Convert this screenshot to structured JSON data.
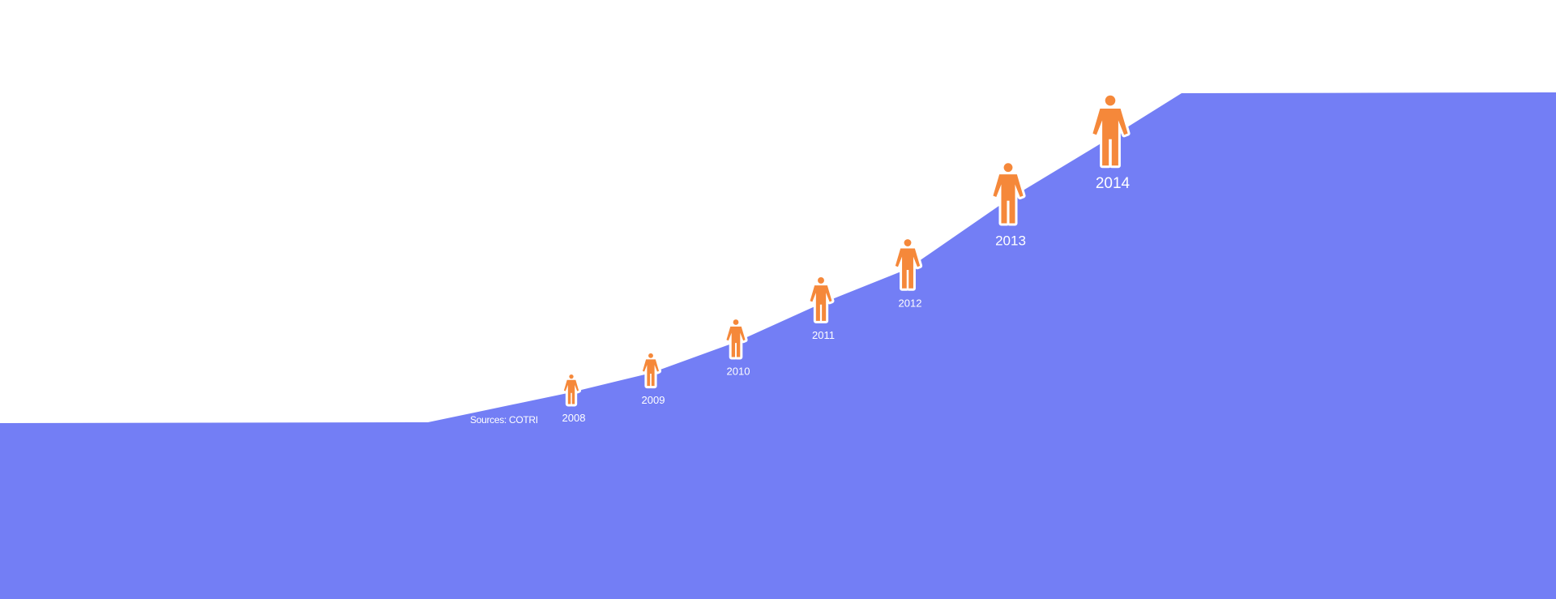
{
  "chart_data": {
    "type": "area",
    "title": "",
    "xlabel": "",
    "ylabel": "",
    "grid": false,
    "legend": "none",
    "categories": [
      "2008",
      "2009",
      "2010",
      "2011",
      "2012",
      "2013",
      "2014"
    ],
    "series": [
      {
        "values": [
          1.0,
          1.5,
          2.3,
          3.3,
          4.2,
          6.0,
          7.6
        ]
      }
    ],
    "ylim": [
      0,
      10
    ],
    "annotations": {
      "source": "Sources: COTRI"
    }
  },
  "colors": {
    "area": "#737ef5",
    "figure": "#f5883a",
    "figure_outline": "#ffffff",
    "background": "#ffffff",
    "label": "#ffffff"
  },
  "icons": {
    "marker": "person-icon"
  }
}
